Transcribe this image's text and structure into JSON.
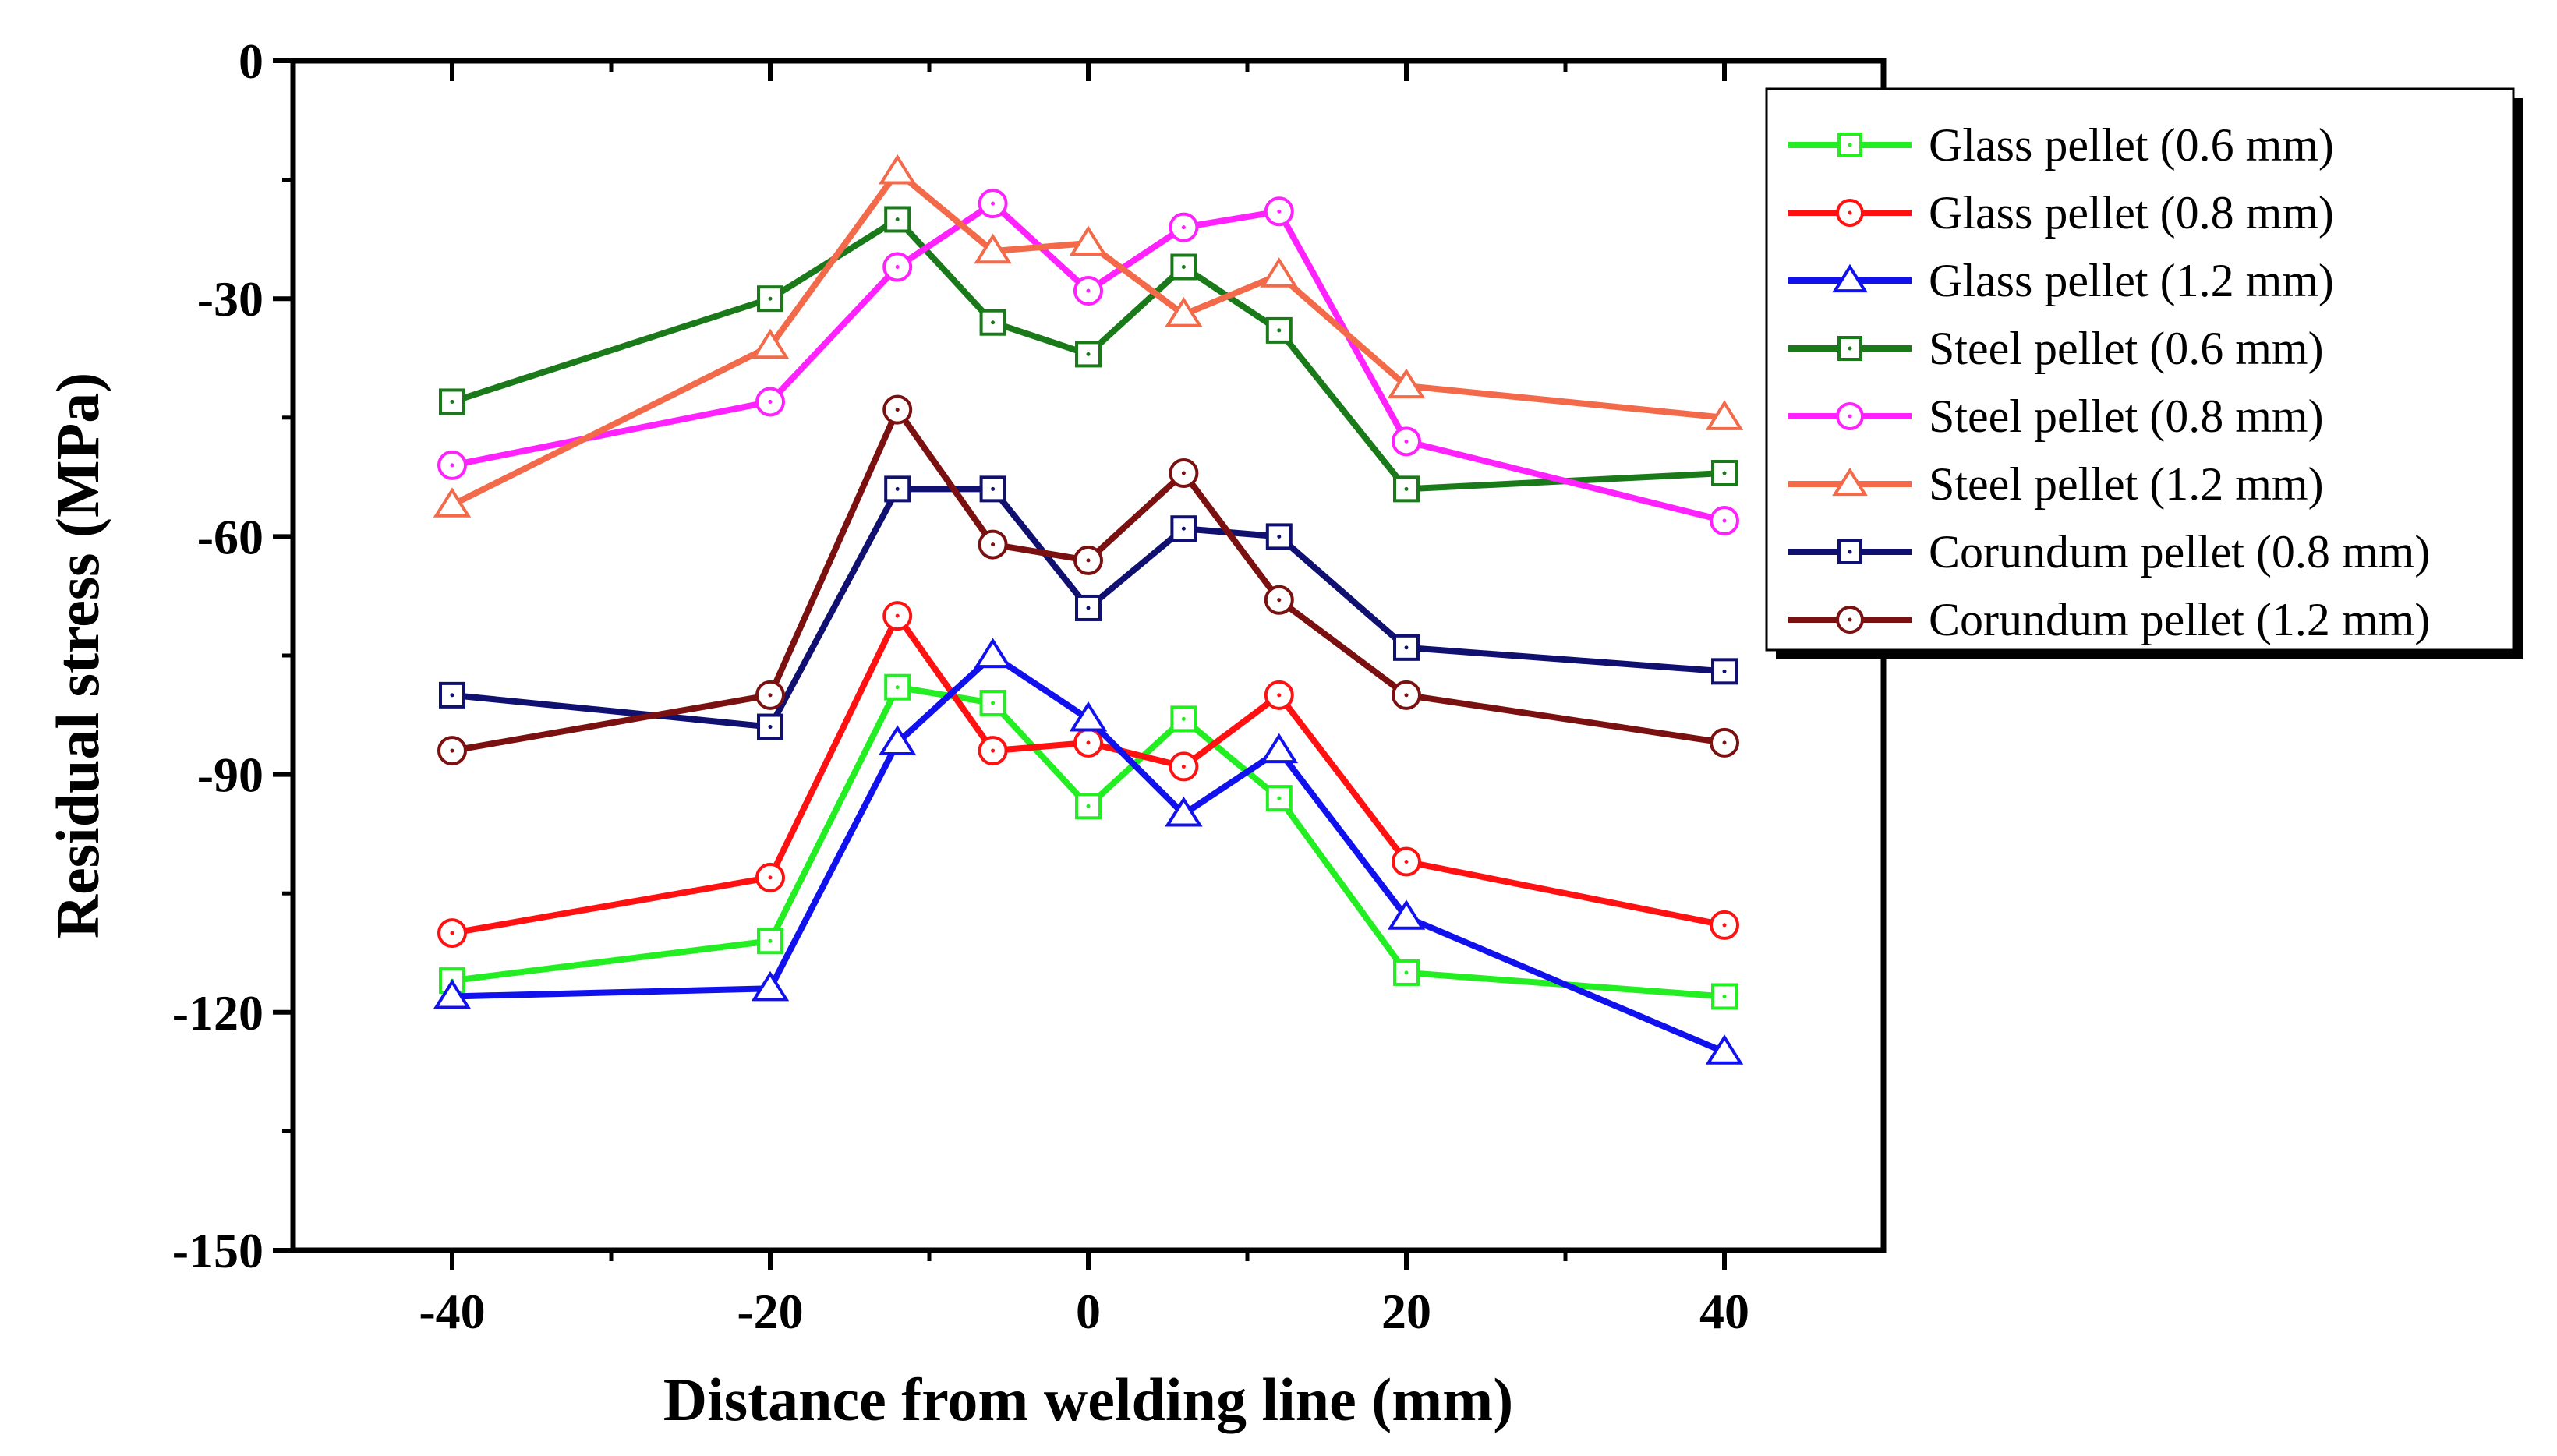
{
  "chart_data": {
    "type": "line",
    "title": "",
    "xlabel": "Distance from welding line (mm)",
    "ylabel": "Residual stress (MPa)",
    "xlim": [
      -50,
      50
    ],
    "ylim": [
      -150,
      0
    ],
    "xticks": [
      -40,
      -20,
      0,
      20,
      40
    ],
    "yticks": [
      0,
      -30,
      -60,
      -90,
      -120,
      -150
    ],
    "legend_position": "top-right",
    "x": [
      -40,
      -20,
      -12,
      -6,
      0,
      6,
      12,
      20,
      40
    ],
    "series": [
      {
        "name": "Glass pellet (0.6 mm)",
        "color": "#22ee22",
        "marker": "square",
        "values": [
          -116,
          -111,
          -79,
          -81,
          -94,
          -83,
          -93,
          -115,
          -118
        ]
      },
      {
        "name": "Glass pellet (0.8 mm)",
        "color": "#ff1111",
        "marker": "circle",
        "values": [
          -110,
          -103,
          -70,
          -87,
          -86,
          -89,
          -80,
          -101,
          -109
        ]
      },
      {
        "name": "Glass pellet (1.2 mm)",
        "color": "#1111ee",
        "marker": "triangle",
        "values": [
          -118,
          -117,
          -86,
          -75,
          -83,
          -95,
          -87,
          -108,
          -125
        ]
      },
      {
        "name": "Steel pellet (0.6 mm)",
        "color": "#1a7a1a",
        "marker": "square",
        "values": [
          -43,
          -30,
          -20,
          -33,
          -37,
          -26,
          -34,
          -54,
          -52
        ]
      },
      {
        "name": "Steel pellet (0.8 mm)",
        "color": "#ff22ff",
        "marker": "circle",
        "values": [
          -51,
          -43,
          -26,
          -18,
          -29,
          -21,
          -19,
          -48,
          -58
        ]
      },
      {
        "name": "Steel pellet (1.2 mm)",
        "color": "#f26a4a",
        "marker": "triangle",
        "values": [
          -56,
          -36,
          -14,
          -24,
          -23,
          -32,
          -27,
          -41,
          -45
        ]
      },
      {
        "name": "Corundum pellet (0.8 mm)",
        "color": "#101070",
        "marker": "square",
        "values": [
          -80,
          -84,
          -54,
          -54,
          -69,
          -59,
          -60,
          -74,
          -77
        ]
      },
      {
        "name": "Corundum pellet (1.2 mm)",
        "color": "#7a1010",
        "marker": "circle",
        "values": [
          -87,
          -80,
          -44,
          -61,
          -63,
          -52,
          -68,
          -80,
          -86
        ]
      }
    ]
  }
}
